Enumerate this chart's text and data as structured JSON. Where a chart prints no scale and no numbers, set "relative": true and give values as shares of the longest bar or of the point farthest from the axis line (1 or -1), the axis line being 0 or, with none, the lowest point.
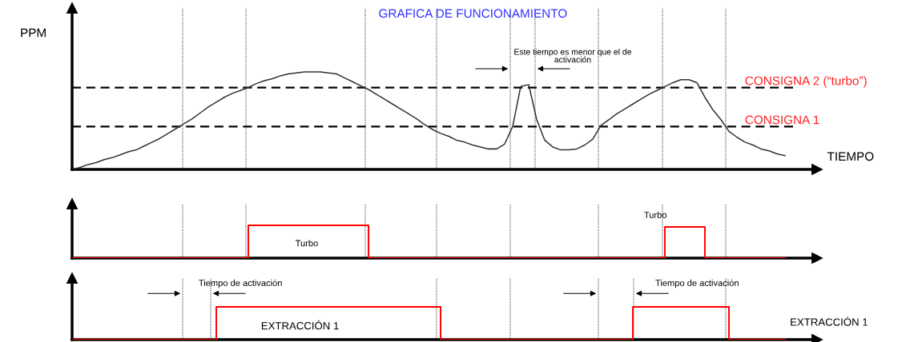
{
  "chart_data": [
    {
      "type": "line",
      "title": "GRAFICA DE FUNCIONAMIENTO",
      "ylabel": "PPM",
      "xlabel": "TIEMPO",
      "relative": true,
      "legend": false,
      "tick_labels": false,
      "marker": "none",
      "categories": [
        null,
        null,
        null,
        null,
        null,
        null,
        null,
        null,
        null,
        null,
        null,
        null,
        null,
        null,
        null,
        null,
        null,
        null,
        null,
        null,
        null,
        null,
        null,
        null,
        null,
        null,
        null,
        null,
        null,
        null,
        null,
        null,
        null,
        null,
        null,
        null,
        null,
        null,
        null,
        null,
        null,
        null,
        null,
        null,
        null,
        null,
        null,
        null,
        null,
        null,
        null,
        null,
        null,
        null,
        null,
        null,
        null,
        null,
        null,
        null,
        null,
        null,
        null,
        null,
        null,
        null,
        null,
        null,
        null,
        null,
        null,
        null,
        null,
        null,
        null,
        null,
        null,
        null,
        null,
        null,
        null,
        null,
        null,
        null,
        null,
        null,
        null,
        null,
        null,
        null
      ],
      "series": [
        {
          "color": "#333333",
          "line_style": "solid",
          "values": [
            0,
            0.02,
            0.05,
            0.07,
            0.1,
            0.12,
            0.15,
            0.18,
            0.2,
            0.24,
            0.28,
            0.32,
            0.37,
            0.42,
            0.47,
            0.52,
            0.58,
            0.64,
            0.69,
            0.74,
            0.78,
            0.81,
            0.84,
            0.88,
            0.91,
            0.93,
            0.96,
            0.98,
            0.99,
            1,
            1,
            1,
            0.99,
            0.98,
            0.94,
            0.9,
            0.86,
            0.82,
            0.77,
            0.72,
            0.67,
            0.62,
            0.57,
            0.52,
            0.46,
            0.41,
            0.37,
            0.34,
            0.3,
            0.28,
            0.25,
            0.23,
            0.21,
            0.21,
            0.26,
            0.44,
            0.85,
            0.87,
            0.51,
            0.3,
            0.23,
            0.2,
            0.2,
            0.21,
            0.25,
            0.31,
            0.45,
            0.51,
            0.57,
            0.62,
            0.67,
            0.72,
            0.77,
            0.81,
            0.85,
            0.89,
            0.92,
            0.92,
            0.89,
            0.74,
            0.61,
            0.51,
            0.39,
            0.33,
            0.28,
            0.25,
            0.21,
            0.19,
            0.16,
            0.14
          ]
        }
      ],
      "ref_lines": [
        {
          "axis": "y",
          "value": 0.84,
          "label": "CONSIGNA 2 (“turbo”)",
          "color": "#000000",
          "line_style": "dashed"
        },
        {
          "axis": "y",
          "value": 0.44,
          "label": "CONSIGNA 1",
          "color": "#000000",
          "line_style": "dashed"
        }
      ],
      "annotations": [
        "Este tiempo es menor que el de\nactivación"
      ]
    },
    {
      "type": "step",
      "relative": true,
      "legend": false,
      "tick_labels": false,
      "marker": "none",
      "categories": [
        null,
        null,
        null,
        null,
        null,
        null,
        null,
        null,
        null,
        null,
        null,
        null,
        null,
        null,
        null,
        null,
        null,
        null,
        null,
        null,
        null,
        null,
        null,
        null,
        null,
        null,
        null,
        null,
        null,
        null,
        null,
        null,
        null,
        null,
        null,
        null,
        null,
        null,
        null,
        null,
        null,
        null,
        null,
        null,
        null,
        null,
        null,
        null,
        null,
        null,
        null,
        null,
        null,
        null,
        null,
        null,
        null,
        null,
        null,
        null,
        null,
        null,
        null,
        null,
        null,
        null,
        null,
        null,
        null,
        null,
        null,
        null,
        null,
        null,
        null,
        null,
        null,
        null,
        null,
        null,
        null,
        null,
        null,
        null,
        null,
        null,
        null,
        null,
        null,
        null
      ],
      "series": [
        {
          "color": "#ff0000",
          "line_style": "solid",
          "values": [
            0,
            0,
            0,
            0,
            0,
            0,
            0,
            0,
            0,
            0,
            0,
            0,
            0,
            0,
            0,
            0,
            0,
            0,
            0,
            0,
            0,
            0,
            1,
            1,
            1,
            1,
            1,
            1,
            1,
            1,
            1,
            1,
            1,
            1,
            1,
            1,
            1,
            0,
            0,
            0,
            0,
            0,
            0,
            0,
            0,
            0,
            0,
            0,
            0,
            0,
            0,
            0,
            0,
            0,
            0,
            0,
            0,
            0,
            0,
            0,
            0,
            0,
            0,
            0,
            0,
            0,
            0,
            0,
            0,
            0,
            0,
            0,
            0,
            0,
            0.95,
            0.95,
            0.95,
            0.95,
            0.95,
            0,
            0,
            0,
            0,
            0,
            0,
            0,
            0,
            0,
            0,
            0
          ]
        }
      ],
      "annotations": [
        "Turbo",
        "Turbo"
      ]
    },
    {
      "type": "step",
      "relative": true,
      "legend": false,
      "tick_labels": false,
      "marker": "none",
      "categories": [
        null,
        null,
        null,
        null,
        null,
        null,
        null,
        null,
        null,
        null,
        null,
        null,
        null,
        null,
        null,
        null,
        null,
        null,
        null,
        null,
        null,
        null,
        null,
        null,
        null,
        null,
        null,
        null,
        null,
        null,
        null,
        null,
        null,
        null,
        null,
        null,
        null,
        null,
        null,
        null,
        null,
        null,
        null,
        null,
        null,
        null,
        null,
        null,
        null,
        null,
        null,
        null,
        null,
        null,
        null,
        null,
        null,
        null,
        null,
        null,
        null,
        null,
        null,
        null,
        null,
        null,
        null,
        null,
        null,
        null,
        null,
        null,
        null,
        null,
        null,
        null,
        null,
        null,
        null,
        null,
        null,
        null,
        null,
        null,
        null,
        null,
        null,
        null,
        null,
        null
      ],
      "series": [
        {
          "color": "#ff0000",
          "line_style": "solid",
          "values": [
            0,
            0,
            0,
            0,
            0,
            0,
            0,
            0,
            0,
            0,
            0,
            0,
            0,
            0,
            0,
            0,
            0,
            0,
            1,
            1,
            1,
            1,
            1,
            1,
            1,
            1,
            1,
            1,
            1,
            1,
            1,
            1,
            1,
            1,
            1,
            1,
            1,
            1,
            1,
            1,
            1,
            1,
            1,
            1,
            1,
            1,
            0,
            0,
            0,
            0,
            0,
            0,
            0,
            0,
            0,
            0,
            0,
            0,
            0,
            0,
            0,
            0,
            0,
            0,
            0,
            0,
            0,
            0,
            0,
            0,
            1,
            1,
            1,
            1,
            1,
            1,
            1,
            1,
            1,
            1,
            1,
            1,
            0,
            0,
            0,
            0,
            0,
            0,
            0,
            0
          ]
        }
      ],
      "annotations": [
        "Tiempo de activación",
        "EXTRACCIÓN 1",
        "Tiempo de activación",
        "EXTRACCIÓN 1"
      ]
    }
  ]
}
